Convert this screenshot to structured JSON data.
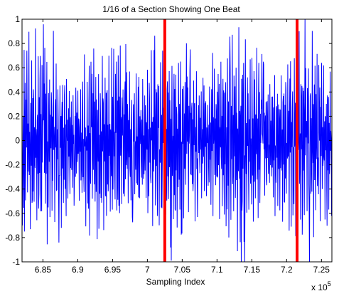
{
  "chart_data": {
    "type": "line",
    "title": "1/16 of a Section Showing One Beat",
    "xlabel": "Sampling Index",
    "ylabel": "",
    "x_exponent_label": "x 10",
    "x_exponent_power": "5",
    "xlim": [
      6.82,
      7.265
    ],
    "ylim": [
      -1,
      1
    ],
    "x_ticks": [
      6.85,
      6.9,
      6.95,
      7.0,
      7.05,
      7.1,
      7.15,
      7.2,
      7.25
    ],
    "x_tick_labels": [
      "6.85",
      "6.9",
      "6.95",
      "7",
      "7.05",
      "7.1",
      "7.15",
      "7.2",
      "7.25"
    ],
    "y_ticks": [
      1,
      0.8,
      0.6,
      0.4,
      0.2,
      0,
      -0.2,
      -0.4,
      -0.6,
      -0.8,
      -1
    ],
    "y_tick_labels": [
      "1",
      "0.8",
      "0.6",
      "0.4",
      "0.2",
      "0",
      "-0.2",
      "-0.4",
      "-0.6",
      "-0.8",
      "-1"
    ],
    "grid": false,
    "series": [
      {
        "color": "#0000ff",
        "x_start": 6.82,
        "x_end": 7.265,
        "samples": 900,
        "y_range": [
          -1,
          1
        ]
      }
    ],
    "markers": [
      {
        "x": 7.025,
        "color": "#ff0000"
      },
      {
        "x": 7.215,
        "color": "#ff0000"
      }
    ]
  }
}
